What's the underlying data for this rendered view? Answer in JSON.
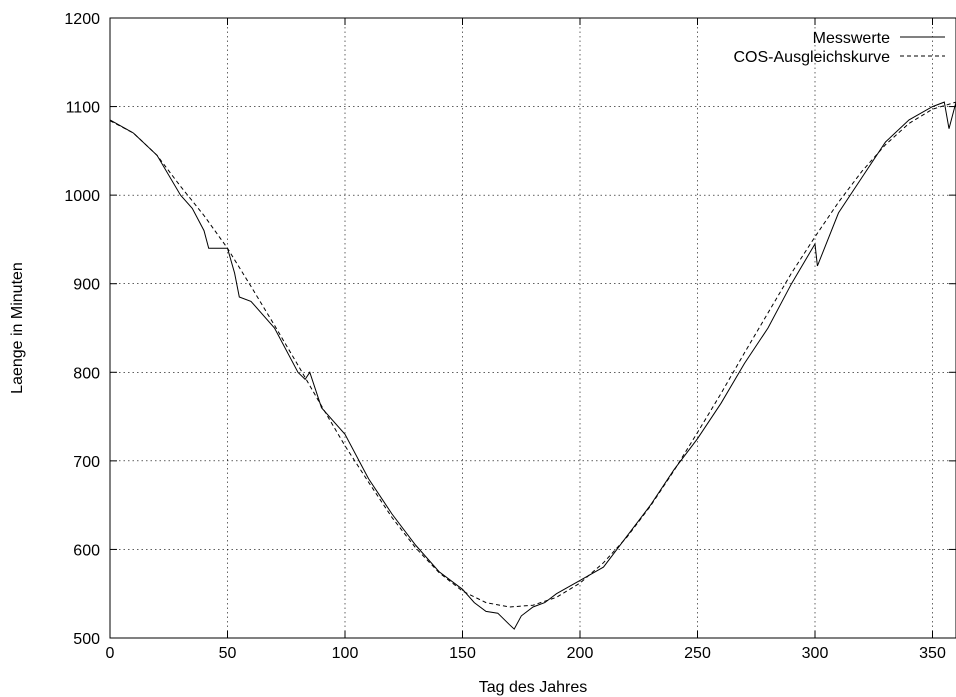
{
  "chart_data": {
    "type": "line",
    "title": "",
    "xlabel": "Tag des Jahres",
    "ylabel": "Laenge in Minuten",
    "xlim": [
      0,
      360
    ],
    "ylim": [
      500,
      1200
    ],
    "xticks": [
      0,
      50,
      100,
      150,
      200,
      250,
      300,
      350
    ],
    "yticks": [
      500,
      600,
      700,
      800,
      900,
      1000,
      1100,
      1200
    ],
    "grid": true,
    "legend_position": "top-right",
    "series": [
      {
        "name": "Messwerte",
        "style": "solid",
        "color": "#000000",
        "x": [
          0,
          10,
          20,
          30,
          35,
          40,
          42,
          50,
          53,
          55,
          60,
          70,
          80,
          83,
          85,
          90,
          100,
          110,
          120,
          130,
          140,
          150,
          155,
          160,
          165,
          170,
          172,
          175,
          180,
          185,
          190,
          200,
          210,
          220,
          230,
          240,
          250,
          260,
          270,
          280,
          290,
          300,
          301,
          310,
          320,
          330,
          340,
          350,
          355,
          357,
          360
        ],
        "y": [
          1085,
          1070,
          1045,
          1000,
          985,
          960,
          940,
          940,
          912,
          885,
          880,
          850,
          800,
          792,
          800,
          760,
          730,
          680,
          640,
          605,
          575,
          555,
          540,
          530,
          528,
          515,
          510,
          525,
          535,
          540,
          550,
          565,
          580,
          615,
          650,
          690,
          725,
          765,
          810,
          850,
          900,
          945,
          920,
          980,
          1020,
          1060,
          1085,
          1100,
          1105,
          1075,
          1105
        ]
      },
      {
        "name": "COS-Ausgleichskurve",
        "style": "dashed",
        "color": "#000000",
        "x": [
          0,
          10,
          20,
          30,
          40,
          50,
          60,
          70,
          80,
          90,
          100,
          110,
          120,
          130,
          140,
          150,
          160,
          170,
          180,
          190,
          200,
          210,
          220,
          230,
          240,
          250,
          260,
          270,
          280,
          290,
          300,
          310,
          320,
          330,
          340,
          350,
          360
        ],
        "y": [
          1084,
          1070,
          1045,
          1010,
          977,
          940,
          897,
          853,
          808,
          762,
          717,
          676,
          636,
          602,
          574,
          553,
          540,
          535,
          537,
          546,
          562,
          585,
          614,
          649,
          689,
          732,
          776,
          822,
          867,
          912,
          953,
          992,
          1027,
          1057,
          1081,
          1097,
          1105
        ]
      }
    ]
  }
}
